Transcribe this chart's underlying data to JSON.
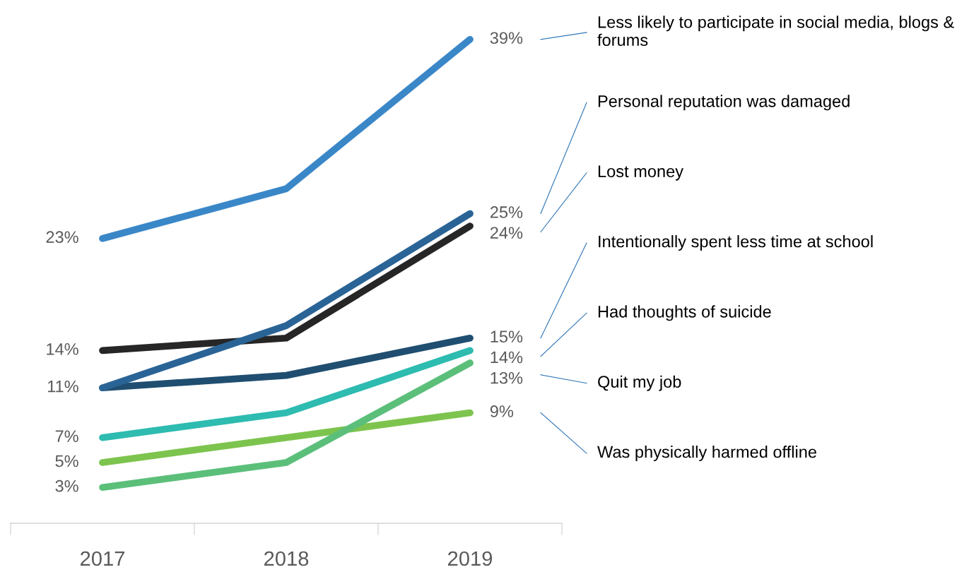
{
  "chart_data": {
    "type": "line",
    "categories": [
      "2017",
      "2018",
      "2019"
    ],
    "tick_labels": "x",
    "legend": false,
    "grid": false,
    "line_style": "solid",
    "marker": "none",
    "series": [
      {
        "name": "Less likely to participate in social media, blogs & forums",
        "color": "#3a87c8",
        "values": [
          23,
          27,
          39
        ],
        "value_labels": [
          "23%",
          null,
          "39%"
        ]
      },
      {
        "name": "Personal reputation was damaged",
        "color": "#2a6496",
        "values": [
          11,
          16,
          25
        ],
        "value_labels": [
          null,
          null,
          "25%"
        ]
      },
      {
        "name": "Lost money",
        "color": "#262626",
        "values": [
          14,
          15,
          24
        ],
        "value_labels": [
          "14%",
          null,
          "24%"
        ]
      },
      {
        "name": "Intentionally spent less time at school",
        "color": "#1f4e70",
        "values": [
          11,
          12,
          15
        ],
        "value_labels": [
          "11%",
          null,
          "15%"
        ]
      },
      {
        "name": "Had thoughts of suicide",
        "color": "#2ebbb0",
        "values": [
          7,
          9,
          14
        ],
        "value_labels": [
          "7%",
          null,
          "14%"
        ]
      },
      {
        "name": "Quit my job",
        "color": "#5bbf7a",
        "values": [
          3,
          5,
          13
        ],
        "value_labels": [
          "3%",
          null,
          "13%"
        ]
      },
      {
        "name": "Was physically harmed offline",
        "color": "#7dc44e",
        "values": [
          5,
          7,
          9
        ],
        "value_labels": [
          "5%",
          null,
          "9%"
        ]
      }
    ]
  }
}
